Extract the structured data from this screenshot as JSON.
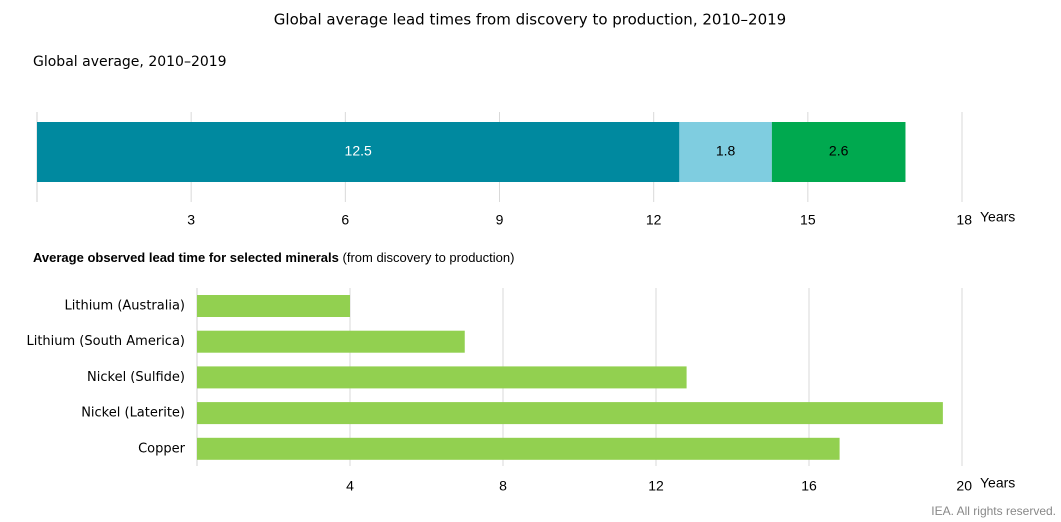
{
  "title": "Global average lead times from discovery to production, 2010–2019",
  "footer": "IEA. All rights reserved.",
  "chart_data": [
    {
      "type": "bar",
      "orientation": "horizontal",
      "stacked": true,
      "subtitle": "Global average, 2010–2019",
      "categories": [
        null
      ],
      "series": [
        {
          "color": "#00899f",
          "values": [
            12.5
          ]
        },
        {
          "color": "#7fcde0",
          "values": [
            1.8
          ]
        },
        {
          "color": "#00a94f",
          "values": [
            2.6
          ]
        }
      ],
      "xlim": [
        0,
        18
      ],
      "xticks": [
        3,
        6,
        9,
        12,
        15,
        18
      ],
      "xlabel": "Years",
      "grid": true
    },
    {
      "type": "bar",
      "orientation": "horizontal",
      "title": "Average observed lead time for selected minerals",
      "subtitle": "(from discovery to production)",
      "categories": [
        "Lithium (Australia)",
        "Lithium (South America)",
        "Nickel (Sulfide)",
        "Nickel (Laterite)",
        "Copper"
      ],
      "values": [
        4,
        7,
        12.8,
        19.5,
        16.8
      ],
      "color": "#92d050",
      "xlim": [
        0,
        20
      ],
      "xticks": [
        4,
        8,
        12,
        16,
        20
      ],
      "xlabel": "Years",
      "grid": true
    }
  ]
}
